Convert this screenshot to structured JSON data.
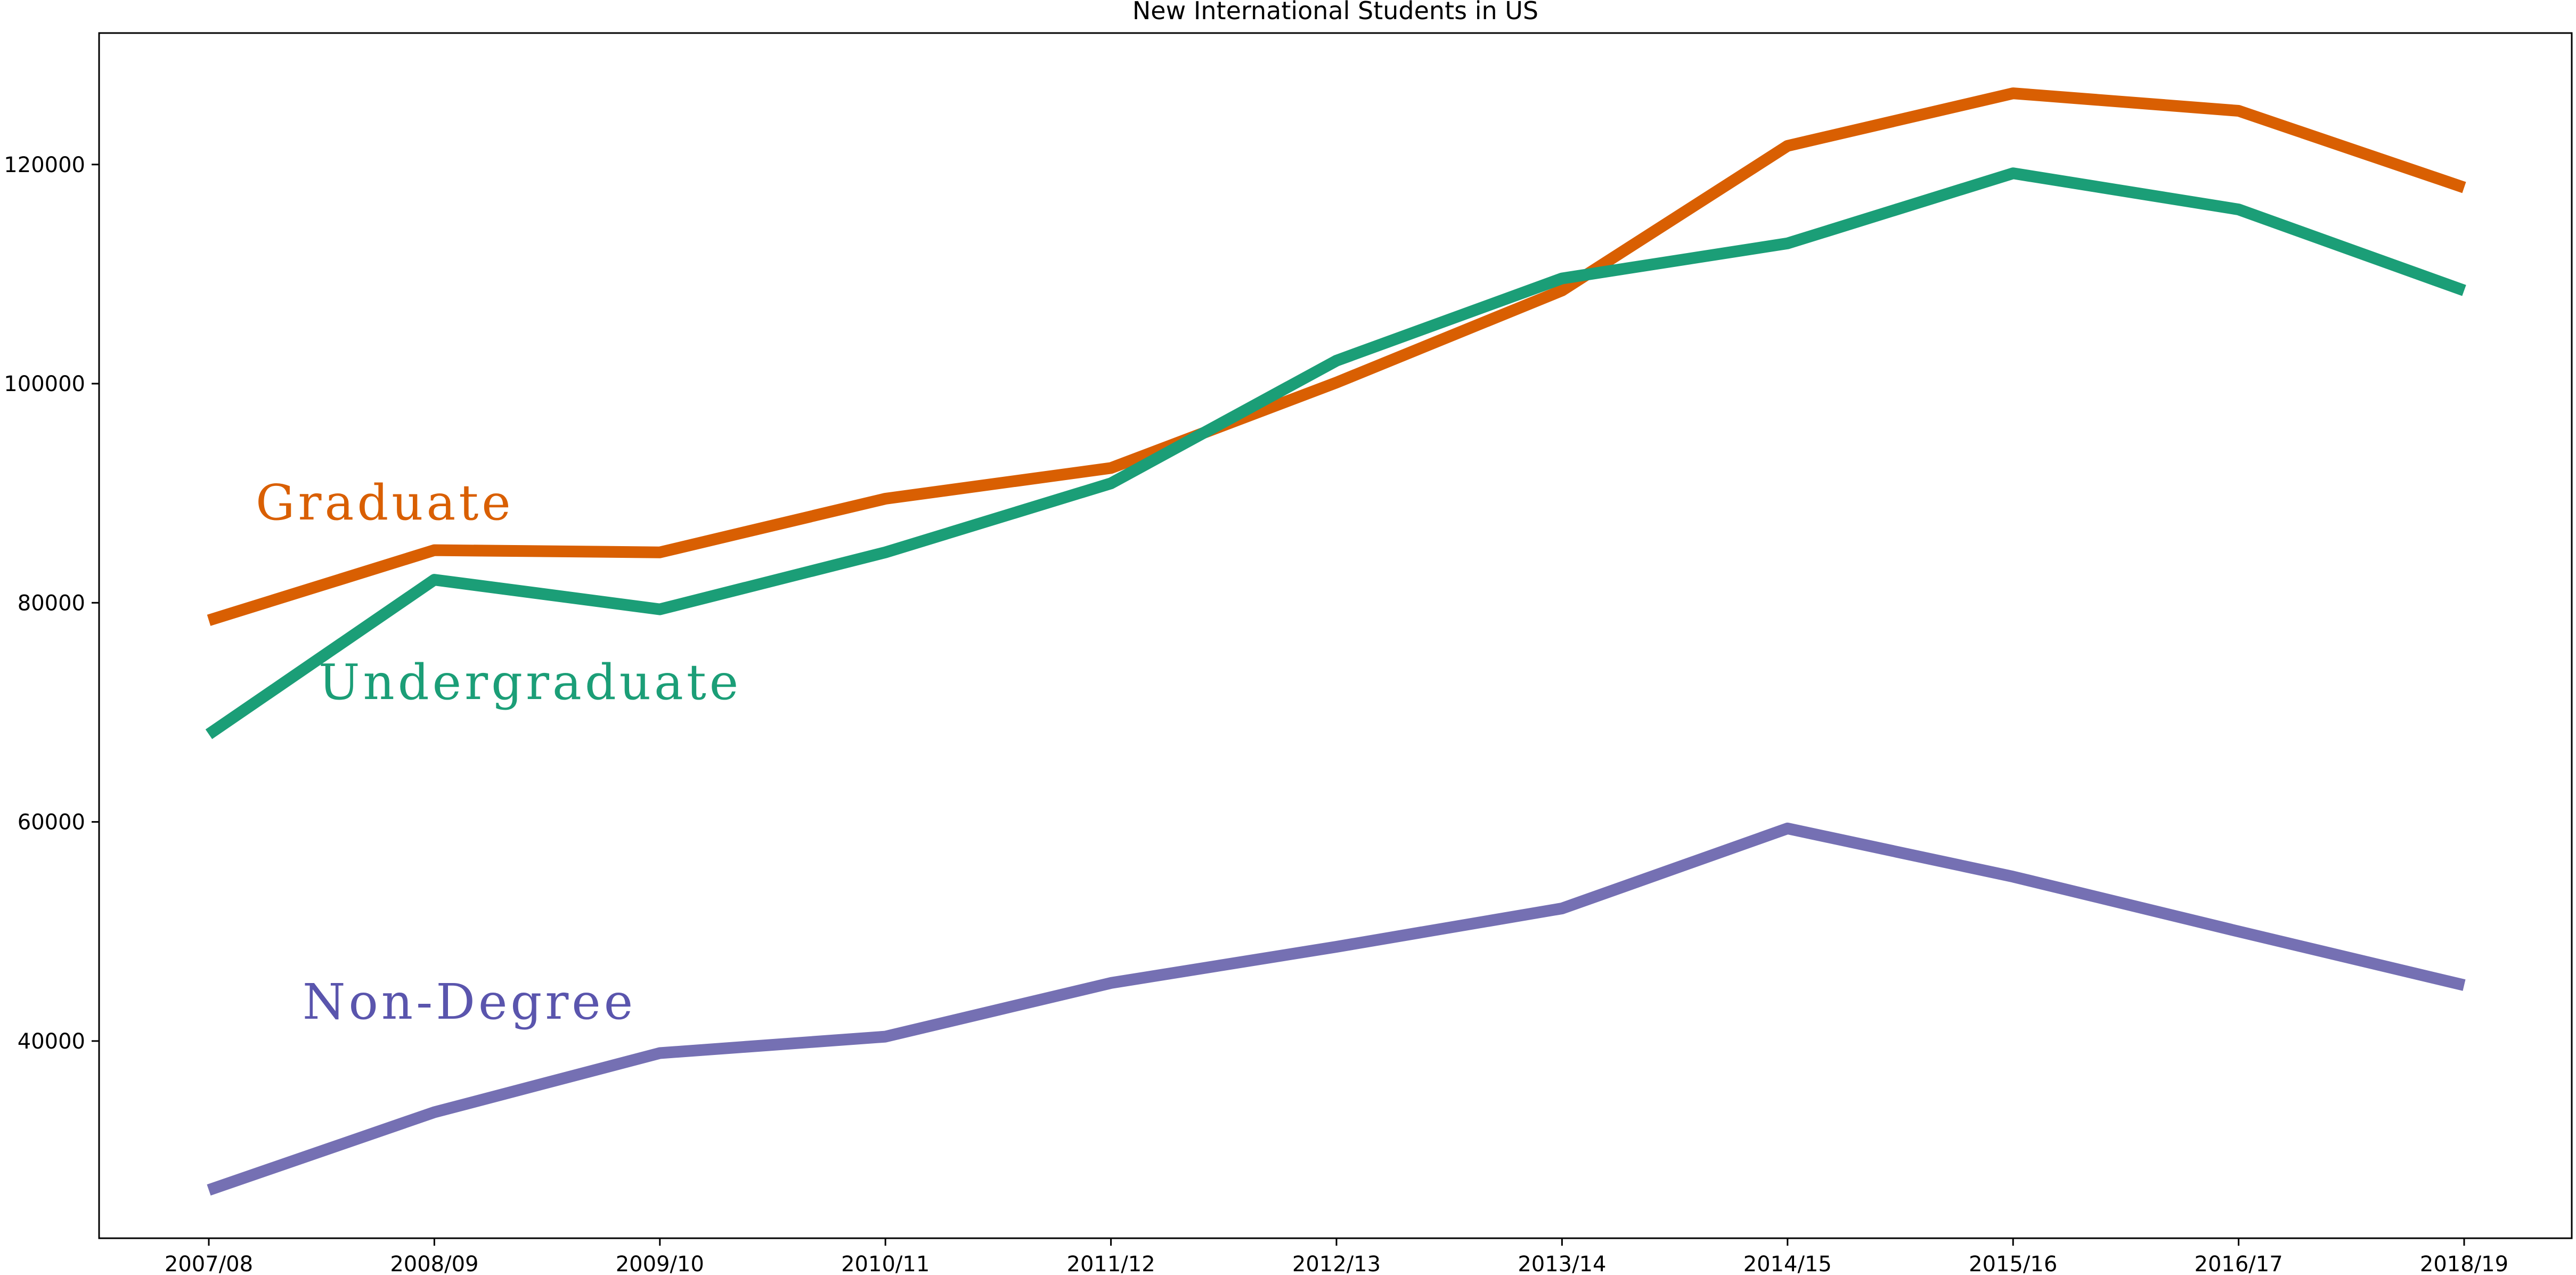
{
  "chart_data": {
    "type": "line",
    "title": "New International Students in US",
    "xlabel": "",
    "ylabel": "",
    "categories": [
      "2007/08",
      "2008/09",
      "2009/10",
      "2010/11",
      "2011/12",
      "2012/13",
      "2013/14",
      "2014/15",
      "2015/16",
      "2016/17",
      "2018/19"
    ],
    "ylim": [
      22000,
      132000
    ],
    "yticks": [
      40000,
      60000,
      80000,
      100000,
      120000
    ],
    "ytick_labels": [
      "40000",
      "60000",
      "80000",
      "100000",
      "120000"
    ],
    "grid": false,
    "legend": "none",
    "series": [
      {
        "name": "Graduate",
        "color": "#d95f02",
        "values": [
          78400,
          84800,
          84600,
          89500,
          92300,
          100100,
          108500,
          121700,
          126500,
          124900,
          117900
        ]
      },
      {
        "name": "Undergraduate",
        "color": "#1b9e77",
        "values": [
          68000,
          82100,
          79400,
          84600,
          90900,
          102100,
          109600,
          112800,
          119200,
          115900,
          108500
        ]
      },
      {
        "name": "Non-Degree",
        "color": "#7570b3",
        "values": [
          26400,
          33500,
          38900,
          40400,
          45300,
          48600,
          52100,
          59400,
          55000,
          50000,
          45100
        ]
      }
    ],
    "annotations": [
      {
        "text": "Graduate",
        "series": "Graduate",
        "color": "#d95f02"
      },
      {
        "text": "Undergraduate",
        "series": "Undergraduate",
        "color": "#1b9e77"
      },
      {
        "text": "Non-Degree",
        "series": "Non-Degree",
        "color": "#5a55ad"
      }
    ]
  }
}
